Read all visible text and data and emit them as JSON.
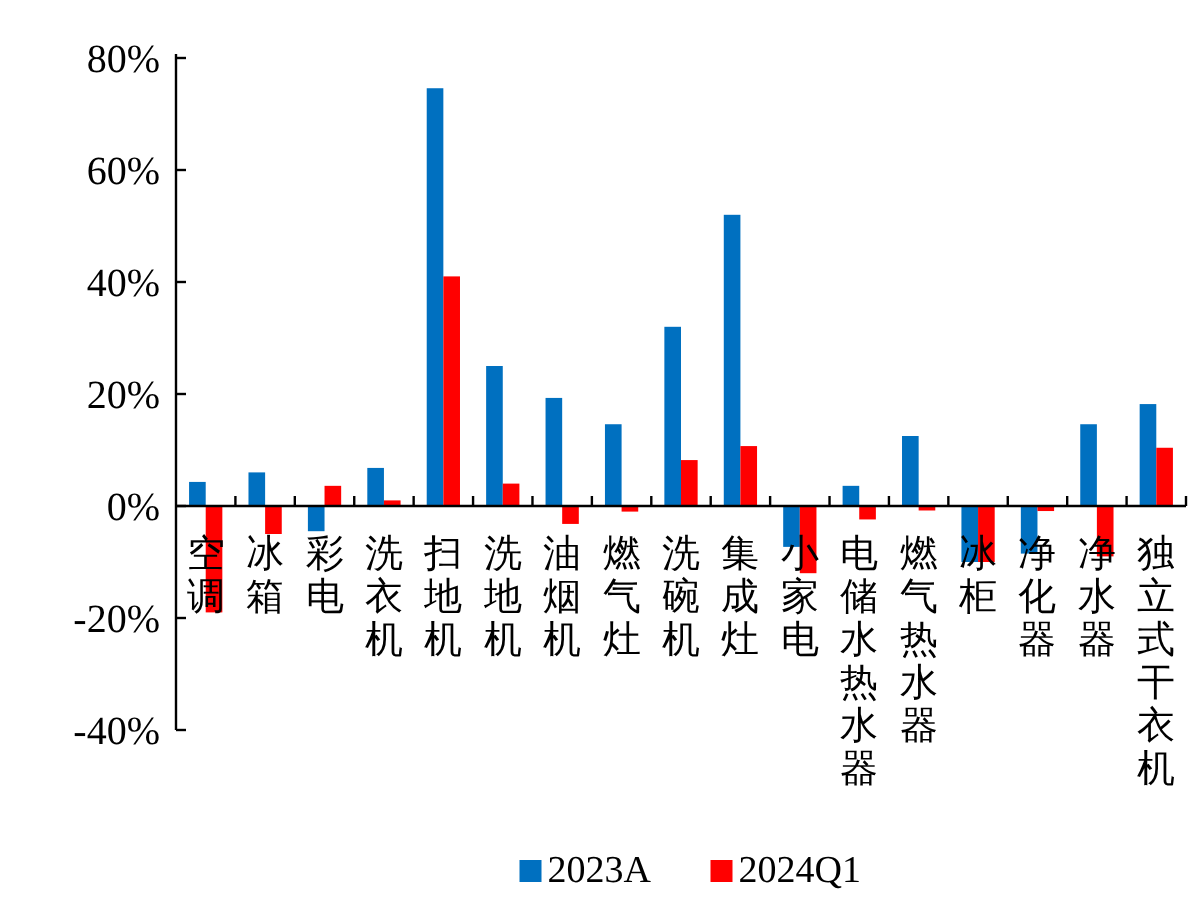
{
  "chart_data": {
    "type": "bar",
    "categories": [
      "空调",
      "冰箱",
      "彩电",
      "洗衣机",
      "扫地机",
      "洗地机",
      "油烟机",
      "燃气灶",
      "洗碗机",
      "集成灶",
      "小家电",
      "电储水热水器",
      "燃气热水器",
      "冰柜",
      "净化器",
      "净水器",
      "独立式干衣机"
    ],
    "series": [
      {
        "name": "2023A",
        "color": "#0070c0",
        "values": [
          4.3,
          6,
          -4.5,
          6.8,
          74.6,
          25,
          19.3,
          14.6,
          32,
          52,
          -7.3,
          3.6,
          12.5,
          -10,
          -8.5,
          14.6,
          18.2
        ]
      },
      {
        "name": "2024Q1",
        "color": "#ff0000",
        "values": [
          -19,
          -5,
          3.6,
          1,
          41,
          4,
          -3.2,
          -1,
          8.2,
          10.7,
          -12,
          -2.4,
          -0.8,
          -10,
          -0.9,
          -9,
          10.4
        ]
      }
    ],
    "ylim": [
      -40,
      80
    ],
    "yticks": [
      {
        "value": -40,
        "label": "-40%"
      },
      {
        "value": -20,
        "label": "-20%"
      },
      {
        "value": 0,
        "label": "0%"
      },
      {
        "value": 20,
        "label": "20%"
      },
      {
        "value": 40,
        "label": "40%"
      },
      {
        "value": 60,
        "label": "60%"
      },
      {
        "value": 80,
        "label": "80%"
      }
    ],
    "grid": false,
    "legend": "bottom"
  }
}
